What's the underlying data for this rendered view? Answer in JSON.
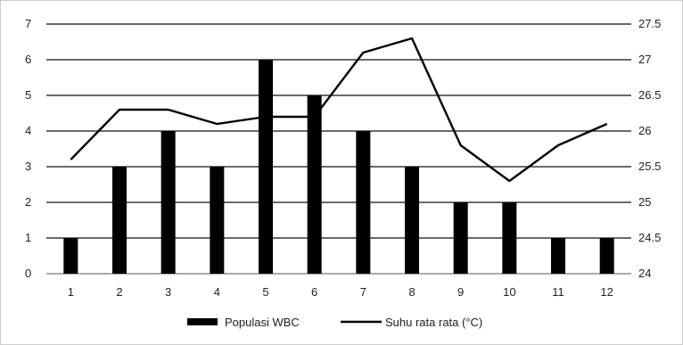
{
  "chart_data": {
    "type": "bar",
    "categories": [
      "1",
      "2",
      "3",
      "4",
      "5",
      "6",
      "7",
      "8",
      "9",
      "10",
      "11",
      "12"
    ],
    "series": [
      {
        "name": "Populasi WBC",
        "type": "bar",
        "axis": "left",
        "color": "#000000",
        "values": [
          1,
          3,
          4,
          3,
          6,
          5,
          4,
          3,
          2,
          2,
          1,
          1
        ]
      },
      {
        "name": "Suhu rata rata (°C)",
        "type": "line",
        "axis": "right",
        "color": "#000000",
        "values": [
          25.6,
          26.3,
          26.3,
          26.1,
          26.2,
          26.2,
          27.1,
          27.3,
          25.8,
          25.3,
          25.8,
          26.1
        ]
      }
    ],
    "y_left": {
      "range": [
        0,
        7
      ],
      "ticks": [
        "0",
        "1",
        "2",
        "3",
        "4",
        "5",
        "6",
        "7"
      ]
    },
    "y_right": {
      "range": [
        24,
        27.5
      ],
      "ticks": [
        "24",
        "24.5",
        "25",
        "25.5",
        "26",
        "26.5",
        "27",
        "27.5"
      ]
    },
    "grid": true,
    "legend": "bottom"
  }
}
